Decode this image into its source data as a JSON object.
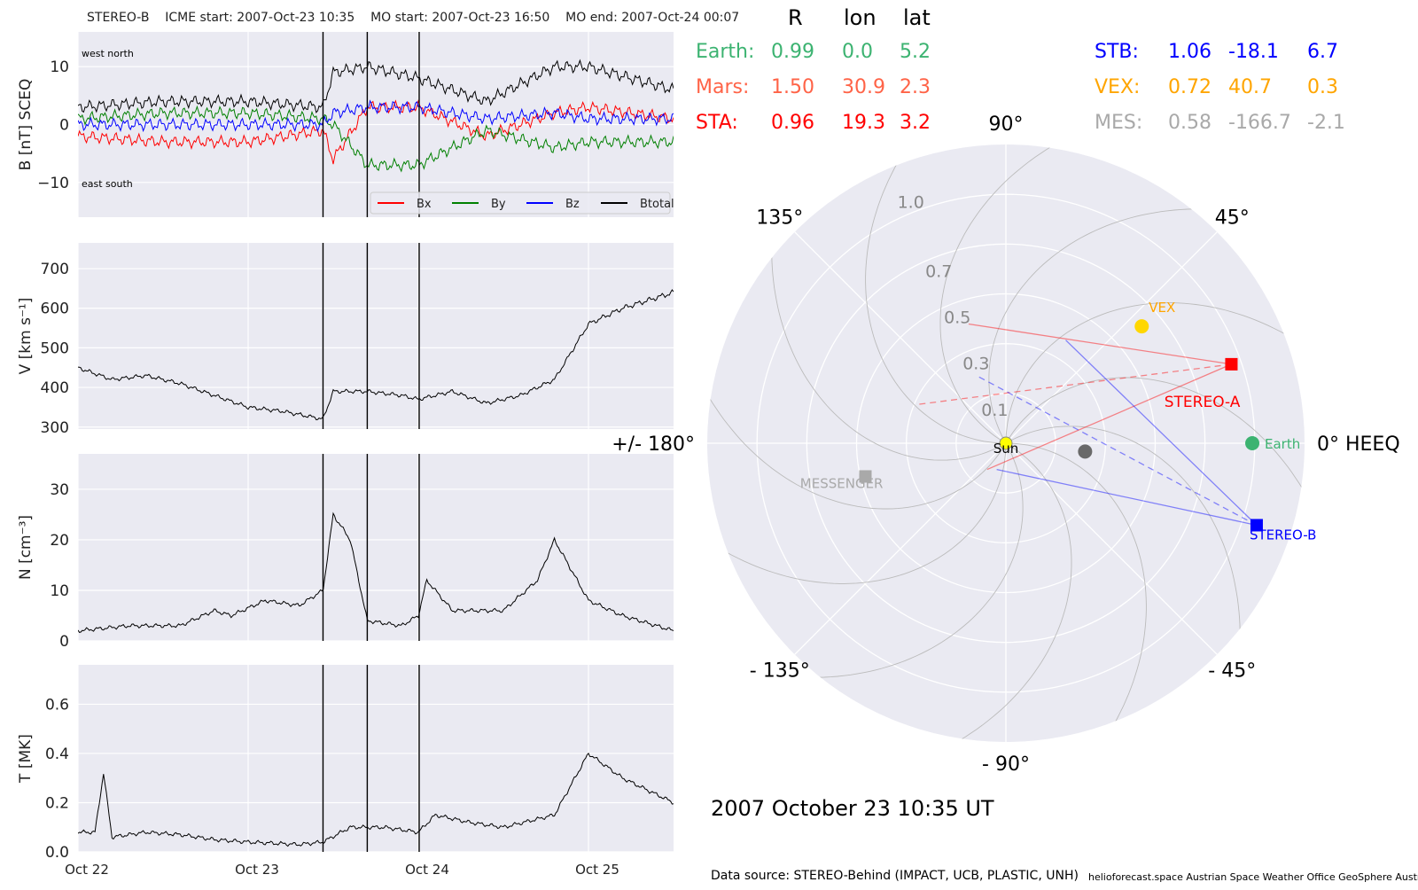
{
  "header": {
    "spacecraft": "STEREO-B",
    "icme_start": "ICME start: 2007-Oct-23 10:35",
    "mo_start": "MO start: 2007-Oct-23 16:50",
    "mo_end": "MO end: 2007-Oct-24 00:07"
  },
  "time_axis": {
    "ticks": [
      "Oct 22",
      "Oct 23",
      "Oct 24",
      "Oct 25"
    ],
    "tick_days": [
      0,
      1,
      2,
      3
    ],
    "range_days": [
      0,
      3.5
    ],
    "event_lines_days": [
      1.44,
      1.7,
      2.005
    ]
  },
  "colors": {
    "bx": "#ff0000",
    "by": "#008000",
    "bz": "#0000ff",
    "btotal": "#000000",
    "earth": "#3cb371",
    "mars": "#ff6347",
    "sta": "#ff0000",
    "stb": "#0000ff",
    "vex": "#ffa500",
    "mes": "#a9a9a9",
    "panel_bg": "#eaeaf2",
    "grid": "#ffffff"
  },
  "chart_data": [
    {
      "type": "line",
      "ylabel": "B [nT] SCEQ",
      "ylim": [
        -16,
        16
      ],
      "yticks": [
        "10",
        "0",
        "−10"
      ],
      "yticks_values": [
        10,
        0,
        -10
      ],
      "corner_labels": {
        "top": "west    north",
        "bottom": "east    south"
      },
      "legend": [
        "Bx",
        "By",
        "Bz",
        "Btotal"
      ],
      "legend_position": "lower-right",
      "series": [
        {
          "name": "Bx",
          "x": [
            0,
            0.5,
            1.0,
            1.44,
            1.5,
            1.7,
            2.0,
            2.4,
            2.8,
            3.0,
            3.5
          ],
          "values": [
            -2,
            -3,
            -3,
            -1,
            -6,
            3,
            3,
            -2,
            2,
            3,
            1
          ]
        },
        {
          "name": "By",
          "x": [
            0,
            0.5,
            1.0,
            1.44,
            1.5,
            1.7,
            2.0,
            2.4,
            2.8,
            3.0,
            3.5
          ],
          "values": [
            1,
            2,
            2,
            1,
            0,
            -7,
            -7,
            -1,
            -4,
            -3,
            -3
          ]
        },
        {
          "name": "Bz",
          "x": [
            0,
            0.5,
            1.0,
            1.44,
            1.5,
            1.7,
            2.0,
            2.4,
            2.8,
            3.0,
            3.5
          ],
          "values": [
            0,
            0,
            0,
            0,
            2,
            3,
            3,
            1,
            2,
            1,
            1
          ]
        },
        {
          "name": "Btotal",
          "x": [
            0,
            0.5,
            1.0,
            1.44,
            1.5,
            1.7,
            2.0,
            2.4,
            2.8,
            3.0,
            3.5
          ],
          "values": [
            3,
            4,
            4,
            3,
            9,
            10,
            8,
            4,
            10,
            10,
            6
          ]
        }
      ]
    },
    {
      "type": "line",
      "ylabel": "V [km s⁻¹]",
      "ylim": [
        295,
        765
      ],
      "yticks": [
        "700",
        "600",
        "500",
        "400",
        "300"
      ],
      "yticks_values": [
        700,
        600,
        500,
        400,
        300
      ],
      "series": [
        {
          "x": [
            0,
            0.2,
            0.4,
            0.6,
            0.8,
            1.0,
            1.2,
            1.44,
            1.5,
            1.7,
            1.9,
            2.0,
            2.2,
            2.4,
            2.6,
            2.8,
            3.0,
            3.2,
            3.5
          ],
          "values": [
            450,
            420,
            430,
            410,
            380,
            350,
            340,
            320,
            390,
            390,
            380,
            370,
            390,
            360,
            380,
            420,
            560,
            600,
            640
          ]
        }
      ]
    },
    {
      "type": "line",
      "ylabel": "N [cm⁻³]",
      "ylim": [
        0,
        37
      ],
      "yticks": [
        "30",
        "20",
        "10",
        "0"
      ],
      "yticks_values": [
        30,
        20,
        10,
        0
      ],
      "series": [
        {
          "x": [
            0,
            0.3,
            0.6,
            0.8,
            0.9,
            1.1,
            1.3,
            1.44,
            1.5,
            1.6,
            1.7,
            1.9,
            2.0,
            2.05,
            2.2,
            2.5,
            2.7,
            2.8,
            3.0,
            3.2,
            3.5
          ],
          "values": [
            2,
            3,
            3,
            6,
            5,
            8,
            7,
            10,
            25,
            20,
            4,
            3,
            5,
            12,
            6,
            6,
            12,
            20,
            8,
            5,
            2
          ]
        }
      ]
    },
    {
      "type": "line",
      "ylabel": "T [MK]",
      "ylim": [
        0,
        0.76
      ],
      "yticks": [
        "0.6",
        "0.4",
        "0.2",
        "0.0"
      ],
      "yticks_values": [
        0.6,
        0.4,
        0.2,
        0.0
      ],
      "series": [
        {
          "x": [
            0,
            0.1,
            0.15,
            0.2,
            0.4,
            0.6,
            0.8,
            1.0,
            1.3,
            1.44,
            1.6,
            1.8,
            2.0,
            2.1,
            2.3,
            2.5,
            2.8,
            3.0,
            3.2,
            3.5
          ],
          "values": [
            0.08,
            0.08,
            0.32,
            0.06,
            0.08,
            0.07,
            0.05,
            0.04,
            0.03,
            0.04,
            0.1,
            0.1,
            0.08,
            0.15,
            0.12,
            0.1,
            0.15,
            0.4,
            0.3,
            0.2
          ]
        }
      ]
    },
    {
      "type": "scatter",
      "projection": "polar",
      "theta_unit": "degrees",
      "rmax": 1.2,
      "angle_labels": [
        "0° HEEQ",
        "45°",
        "90°",
        "135°",
        "+/- 180°",
        "- 135°",
        "- 90°",
        "- 45°"
      ],
      "angle_values": [
        0,
        45,
        90,
        135,
        180,
        -135,
        -90,
        -45
      ],
      "radial_labels": [
        "0.1",
        "0.3",
        "0.5",
        "0.7",
        "1.0"
      ],
      "radial_values": [
        0.1,
        0.3,
        0.5,
        0.7,
        1.0
      ],
      "points": [
        {
          "name": "Sun",
          "r": 0,
          "lon": 0,
          "color": "#ffff00",
          "shape": "circle"
        },
        {
          "name": "",
          "r": 0.32,
          "lon": -6,
          "color": "#696969",
          "shape": "circle"
        },
        {
          "name": "Earth",
          "r": 0.99,
          "lon": 0.0,
          "color": "#3cb371",
          "shape": "circle"
        },
        {
          "name": "VEX",
          "r": 0.72,
          "lon": 40.7,
          "color": "#ffd700",
          "shape": "circle"
        },
        {
          "name": "STEREO-A",
          "r": 0.96,
          "lon": 19.3,
          "color": "#ff0000",
          "shape": "square"
        },
        {
          "name": "STEREO-B",
          "r": 1.06,
          "lon": -18.1,
          "color": "#0000ff",
          "shape": "square"
        },
        {
          "name": "MESSENGER",
          "r": 0.58,
          "lon": -166.7,
          "color": "#a9a9a9",
          "shape": "square"
        }
      ]
    }
  ],
  "positions_table": {
    "headers": [
      "R",
      "lon",
      "lat"
    ],
    "rows": [
      {
        "name": "Earth:",
        "r": "0.99",
        "lon": "0.0",
        "lat": "5.2",
        "color": "#3cb371"
      },
      {
        "name": "Mars:",
        "r": "1.50",
        "lon": "30.9",
        "lat": "2.3",
        "color": "#ff6347"
      },
      {
        "name": "STA:",
        "r": "0.96",
        "lon": "19.3",
        "lat": "3.2",
        "color": "#ff0000"
      },
      {
        "name": "STB:",
        "r": "1.06",
        "lon": "-18.1",
        "lat": "6.7",
        "color": "#0000ff"
      },
      {
        "name": "VEX:",
        "r": "0.72",
        "lon": "40.7",
        "lat": "0.3",
        "color": "#ffa500"
      },
      {
        "name": "MES:",
        "r": "0.58",
        "lon": "-166.7",
        "lat": "-2.1",
        "color": "#a9a9a9"
      }
    ]
  },
  "timestamp": "2007 October 23  10:35 UT",
  "footer": {
    "source": "Data source: STEREO-Behind (IMPACT, UCB, PLASTIC, UNH)",
    "credits": "helioforecast.space   Austrian Space Weather Office   GeoSphere Austria"
  }
}
